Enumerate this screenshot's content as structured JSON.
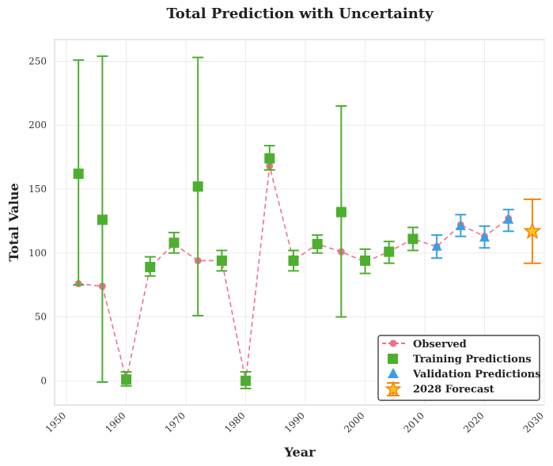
{
  "chart_data": {
    "type": "scatter",
    "title": "Total Prediction with Uncertainty",
    "xlabel": "Year",
    "ylabel": "Total Value",
    "xlim": [
      1948,
      2030
    ],
    "ylim": [
      -19,
      267
    ],
    "xticks": [
      1950,
      1960,
      1970,
      1980,
      1990,
      2000,
      2010,
      2020,
      2030
    ],
    "yticks": [
      0,
      50,
      100,
      150,
      200,
      250
    ],
    "grid": true,
    "legend_position": "bottom-right",
    "observed": {
      "name": "Observed",
      "color": "#f07189",
      "x": [
        1952,
        1956,
        1960,
        1964,
        1968,
        1972,
        1976,
        1980,
        1984,
        1988,
        1992,
        1996,
        2000,
        2004,
        2008,
        2012,
        2016,
        2020,
        2024
      ],
      "y": [
        76,
        74,
        1,
        89,
        107,
        94,
        94,
        0,
        168,
        94,
        107,
        101,
        93,
        101,
        111,
        105,
        122,
        113,
        127
      ]
    },
    "training": {
      "name": "Training Predictions",
      "color": "#4daf2f",
      "points": [
        {
          "x": 1952,
          "y": 162,
          "low": 75,
          "high": 251
        },
        {
          "x": 1956,
          "y": 126,
          "low": -1,
          "high": 254
        },
        {
          "x": 1960,
          "y": 1,
          "low": -4,
          "high": 7
        },
        {
          "x": 1964,
          "y": 89,
          "low": 82,
          "high": 97
        },
        {
          "x": 1968,
          "y": 108,
          "low": 100,
          "high": 116
        },
        {
          "x": 1972,
          "y": 152,
          "low": 51,
          "high": 253
        },
        {
          "x": 1976,
          "y": 94,
          "low": 86,
          "high": 102
        },
        {
          "x": 1980,
          "y": 0,
          "low": -6,
          "high": 7
        },
        {
          "x": 1984,
          "y": 174,
          "low": 165,
          "high": 184
        },
        {
          "x": 1988,
          "y": 94,
          "low": 86,
          "high": 102
        },
        {
          "x": 1992,
          "y": 107,
          "low": 100,
          "high": 114
        },
        {
          "x": 1996,
          "y": 132,
          "low": 50,
          "high": 215
        },
        {
          "x": 2000,
          "y": 94,
          "low": 84,
          "high": 103
        },
        {
          "x": 2004,
          "y": 101,
          "low": 92,
          "high": 109
        },
        {
          "x": 2008,
          "y": 111,
          "low": 102,
          "high": 120
        }
      ]
    },
    "validation": {
      "name": "Validation Predictions",
      "color": "#3a9ee4",
      "points": [
        {
          "x": 2012,
          "y": 105,
          "low": 96,
          "high": 114
        },
        {
          "x": 2016,
          "y": 121,
          "low": 113,
          "high": 130
        },
        {
          "x": 2020,
          "y": 112,
          "low": 104,
          "high": 121
        },
        {
          "x": 2024,
          "y": 126,
          "low": 117,
          "high": 134
        }
      ]
    },
    "forecast": {
      "name": "2028 Forecast",
      "color": "#f5830a",
      "fill": "#fcc419",
      "points": [
        {
          "x": 2028,
          "y": 117,
          "low": 92,
          "high": 142
        }
      ]
    }
  }
}
